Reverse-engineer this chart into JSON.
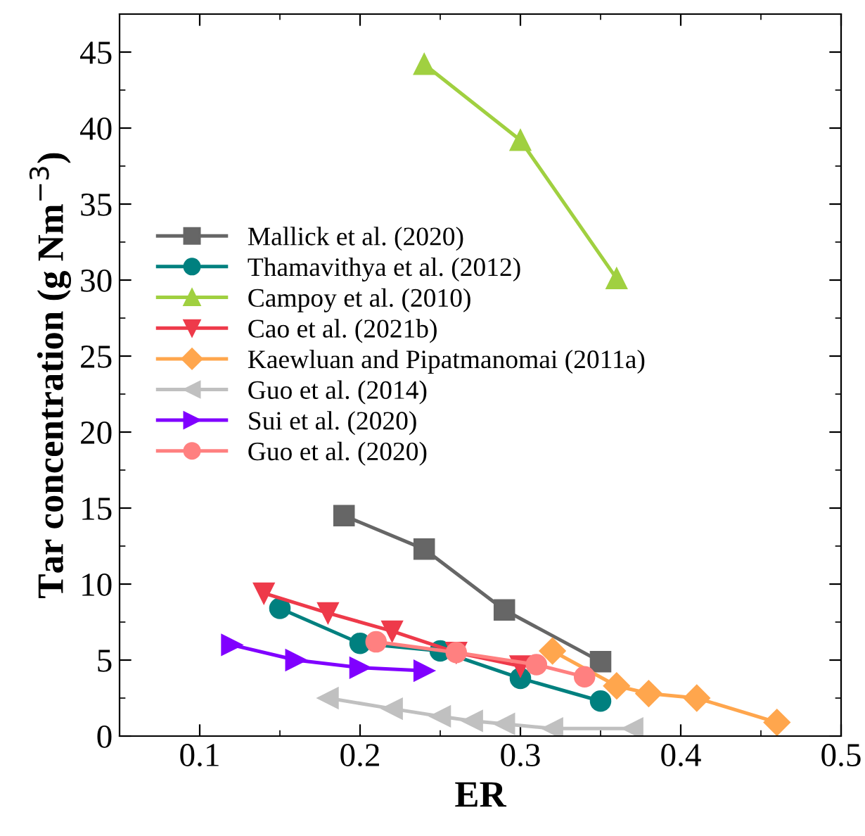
{
  "chart_data": {
    "type": "line",
    "xlabel": "ER",
    "ylabel": "Tar concentration (g Nm$^{−3}$)",
    "xlim": [
      0.05,
      0.5
    ],
    "ylim": [
      0,
      47.5
    ],
    "xticks": [
      0.1,
      0.2,
      0.3,
      0.4,
      0.5
    ],
    "yticks": [
      0,
      5,
      10,
      15,
      20,
      25,
      30,
      35,
      40,
      45
    ],
    "grid": false,
    "legend": "left",
    "line_style": "solid",
    "series": [
      {
        "name": "Mallick et al. (2020)",
        "color": "#666666",
        "marker": "square",
        "x": [
          0.19,
          0.24,
          0.29,
          0.35
        ],
        "values": [
          14.5,
          12.3,
          8.3,
          4.9
        ]
      },
      {
        "name": "Thamavithya et al. (2012)",
        "color": "#00807f",
        "marker": "circle",
        "x": [
          0.15,
          0.2,
          0.25,
          0.3,
          0.35
        ],
        "values": [
          8.4,
          6.1,
          5.6,
          3.8,
          2.3
        ]
      },
      {
        "name": "Campoy et al. (2010)",
        "color": "#a0d040",
        "marker": "triangle",
        "x": [
          0.24,
          0.3,
          0.36
        ],
        "values": [
          44.2,
          39.2,
          30.1
        ]
      },
      {
        "name": "Cao et al. (2021b)",
        "color": "#ee3a4a",
        "marker": "triangle_down",
        "x": [
          0.14,
          0.18,
          0.22,
          0.26,
          0.3
        ],
        "values": [
          9.4,
          8.1,
          6.9,
          5.5,
          4.6
        ]
      },
      {
        "name": "Kaewluan and Pipatmanomai (2011a)",
        "color": "#ffa64d",
        "marker": "diamond",
        "x": [
          0.32,
          0.36,
          0.38,
          0.41,
          0.46
        ],
        "values": [
          5.6,
          3.3,
          2.8,
          2.5,
          0.9
        ]
      },
      {
        "name": "Guo et al. (2014)",
        "color": "#c0c0c0",
        "marker": "triangle_left",
        "x": [
          0.18,
          0.22,
          0.25,
          0.27,
          0.29,
          0.32,
          0.37
        ],
        "values": [
          2.5,
          1.8,
          1.3,
          1.0,
          0.8,
          0.5,
          0.5
        ]
      },
      {
        "name": "Sui et al. (2020)",
        "color": "#8000ff",
        "marker": "triangle_right",
        "x": [
          0.12,
          0.16,
          0.2,
          0.24
        ],
        "values": [
          6.0,
          5.0,
          4.5,
          4.3
        ]
      },
      {
        "name": "Guo et al. (2020)",
        "color": "#ff8080",
        "marker": "circle",
        "x": [
          0.21,
          0.26,
          0.31,
          0.34
        ],
        "values": [
          6.2,
          5.5,
          4.7,
          3.9
        ]
      }
    ]
  }
}
